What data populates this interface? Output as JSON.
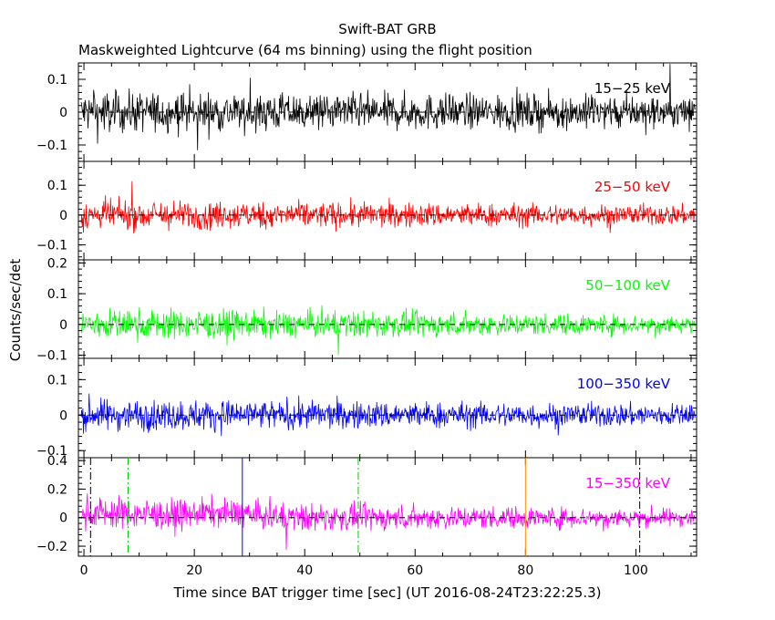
{
  "chart_data": {
    "type": "line",
    "title": "Swift-BAT GRB",
    "subtitle": "Maskweighted Lightcurve (64 ms binning) using the flight position",
    "xlabel": "Time since BAT trigger time [sec] (UT 2016-08-24T23:22:25.3)",
    "ylabel": "Counts/sec/det",
    "xlim": [
      -1,
      111
    ],
    "x_ticks": [
      0,
      20,
      40,
      60,
      80,
      100
    ],
    "x_tick_labels": [
      "0",
      "20",
      "40",
      "60",
      "80",
      "100"
    ],
    "bin_seconds": 0.064,
    "grid": false,
    "panels": [
      {
        "name": "15-25 keV",
        "label": "15−25 keV",
        "color": "#000000",
        "ylim": [
          -0.15,
          0.15
        ],
        "y_ticks": [
          0.1,
          0,
          -0.1
        ],
        "y_tick_labels": [
          "0.1",
          "0",
          "−0.1"
        ],
        "noise_start": 0.055,
        "noise_end": 0.045
      },
      {
        "name": "25-50 keV",
        "label": "25−50 keV",
        "color": "#ff0000",
        "ylim": [
          -0.15,
          0.18
        ],
        "y_ticks": [
          0.1,
          0,
          -0.1
        ],
        "y_tick_labels": [
          "0.1",
          "0",
          "−0.1"
        ],
        "noise_start": 0.045,
        "noise_end": 0.03
      },
      {
        "name": "50-100 keV",
        "label": "50−100 keV",
        "color": "#00ff00",
        "ylim": [
          -0.11,
          0.21
        ],
        "y_ticks": [
          0.2,
          0.1,
          0,
          -0.1
        ],
        "y_tick_labels": [
          "0.2",
          "0.1",
          "0",
          "−0.1"
        ],
        "noise_start": 0.045,
        "noise_end": 0.027
      },
      {
        "name": "100-350 keV",
        "label": "100−350 keV",
        "color": "#0000ff",
        "ylim": [
          -0.12,
          0.16
        ],
        "y_ticks": [
          0.1,
          0,
          -0.1
        ],
        "y_tick_labels": [
          "0.1",
          "0",
          "−0.1"
        ],
        "noise_start": 0.04,
        "noise_end": 0.028
      },
      {
        "name": "15-350 keV",
        "label": "15−350 keV",
        "color": "#ff00ff",
        "ylim": [
          -0.27,
          0.42
        ],
        "y_ticks": [
          0.4,
          0.2,
          0,
          -0.2
        ],
        "y_tick_labels": [
          "0.4",
          "0.2",
          "0",
          "−0.2"
        ],
        "noise_start": 0.1,
        "noise_end": 0.055
      }
    ],
    "markers": [
      {
        "x": 1.2,
        "color": "#000000",
        "style": "dash-dot",
        "panel": 4
      },
      {
        "x": 8.0,
        "color": "#00cc00",
        "style": "dash-dot",
        "panel": 4
      },
      {
        "x": 28.7,
        "color": "#0000ff",
        "style": "solid",
        "panel": 4
      },
      {
        "x": 49.7,
        "color": "#00cc00",
        "style": "dash-dot",
        "panel": 4
      },
      {
        "x": 80.0,
        "color": "#ff8c00",
        "style": "solid",
        "panel": 4
      },
      {
        "x": 100.7,
        "color": "#000000",
        "style": "dash-dot",
        "panel": 4
      }
    ]
  }
}
